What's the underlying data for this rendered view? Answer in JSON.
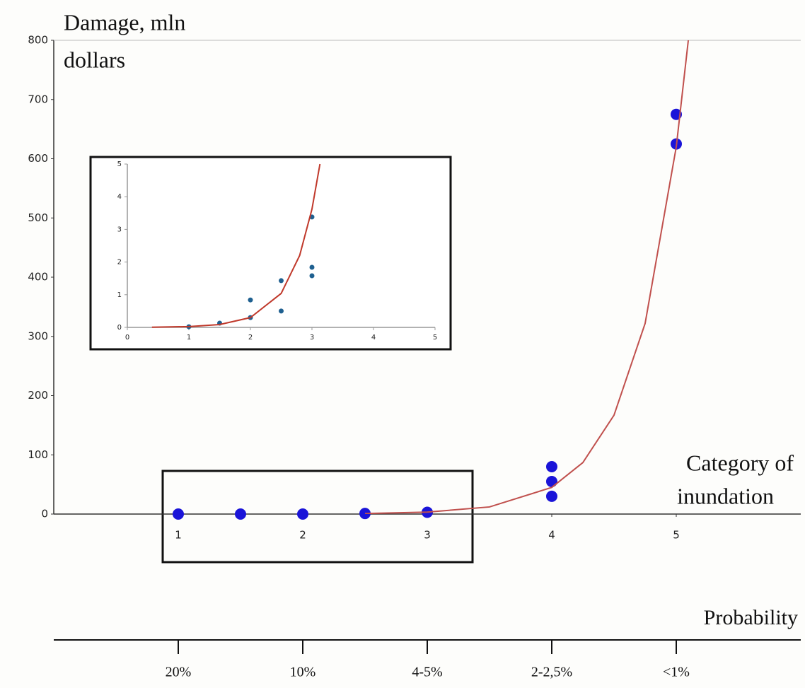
{
  "chart_data": [
    {
      "type": "scatter",
      "y_label": [
        "Damage, mln",
        "dollars"
      ],
      "x_label": [
        "Category of",
        "inundation"
      ],
      "xlim": [
        0,
        6
      ],
      "ylim": [
        0,
        800
      ],
      "xticks": [
        1,
        2,
        3,
        4,
        5
      ],
      "yticks": [
        0,
        100,
        200,
        300,
        400,
        500,
        600,
        700,
        800
      ],
      "series": [
        {
          "type": "scatter",
          "color": "#1a14d8",
          "x": [
            1,
            1.5,
            2,
            2.5,
            3,
            4,
            4,
            4,
            5,
            5
          ],
          "values": [
            0,
            0,
            0,
            1,
            3,
            80,
            55,
            30,
            675,
            625
          ]
        },
        {
          "type": "line",
          "color": "#c0504d",
          "x": [
            2.5,
            3,
            3.5,
            4,
            4.25,
            4.5,
            4.75,
            5,
            5.1
          ],
          "values": [
            0.9,
            3.3,
            12,
            45,
            87,
            167,
            322,
            620,
            806
          ]
        }
      ],
      "probability_axis": {
        "label": "Probability",
        "ticks": [
          {
            "value": 1,
            "label": "20%"
          },
          {
            "value": 2,
            "label": "10%"
          },
          {
            "value": 3,
            "label": "4-5%"
          },
          {
            "value": 4,
            "label": "2-2,5%"
          },
          {
            "value": 5,
            "label": "<1%"
          }
        ]
      }
    },
    {
      "type": "scatter",
      "xlim": [
        0,
        5
      ],
      "ylim": [
        0,
        5
      ],
      "xticks": [
        0,
        1,
        2,
        3,
        4,
        5
      ],
      "yticks": [
        0,
        1,
        2,
        3,
        4,
        5
      ],
      "series": [
        {
          "type": "scatter",
          "color": "#1f6090",
          "x": [
            1,
            1.5,
            2,
            2,
            2.5,
            2.5,
            3,
            3,
            3
          ],
          "values": [
            0.02,
            0.13,
            0.3,
            0.84,
            1.43,
            0.5,
            3.38,
            1.84,
            1.58
          ]
        },
        {
          "type": "line",
          "color": "#c0392b",
          "x": [
            0.4,
            1,
            1.5,
            2,
            2.5,
            2.8,
            3,
            3.13
          ],
          "values": [
            0.0056,
            0.025,
            0.086,
            0.3,
            1.04,
            2.2,
            3.62,
            5.0
          ]
        }
      ]
    }
  ]
}
